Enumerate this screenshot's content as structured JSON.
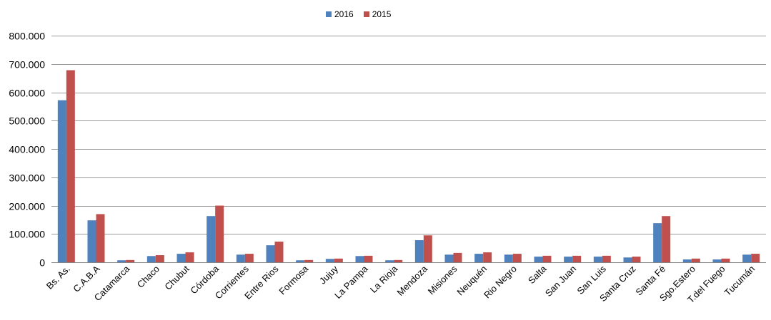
{
  "chart_data": {
    "type": "bar",
    "title": "",
    "xlabel": "",
    "ylabel": "",
    "ylim": [
      0,
      800000
    ],
    "yticks": [
      "0",
      "100.000",
      "200.000",
      "300.000",
      "400.000",
      "500.000",
      "600.000",
      "700.000",
      "800.000"
    ],
    "grid": true,
    "legend_position": "top-center",
    "categories": [
      "Bs. As.",
      "C.A.B.A",
      "Catamarca",
      "Chaco",
      "Chubut",
      "Córdoba",
      "Corrientes",
      "Entre Rios",
      "Formosa",
      "Jujuy",
      "La Pampa",
      "La Rioja",
      "Mendoza",
      "Misiones",
      "Neuquén",
      "Rio Negro",
      "Salta",
      "San Juan",
      "San Luis",
      "Santa Cruz",
      "Santa Fé",
      "Sgo.Estero",
      "T.del Fuego",
      "Tucumán"
    ],
    "series": [
      {
        "name": "2016",
        "color": "#4F81BD",
        "values": [
          572000,
          148000,
          7000,
          22000,
          30000,
          163000,
          27000,
          60000,
          7000,
          12000,
          22000,
          7000,
          78000,
          27000,
          30000,
          27000,
          20000,
          20000,
          20000,
          17000,
          138000,
          10000,
          10000,
          27000
        ]
      },
      {
        "name": "2015",
        "color": "#C0504D",
        "values": [
          678000,
          170000,
          8000,
          25000,
          35000,
          200000,
          30000,
          73000,
          8000,
          13000,
          23000,
          8000,
          95000,
          33000,
          35000,
          30000,
          23000,
          23000,
          23000,
          20000,
          163000,
          13000,
          13000,
          30000
        ]
      }
    ]
  }
}
